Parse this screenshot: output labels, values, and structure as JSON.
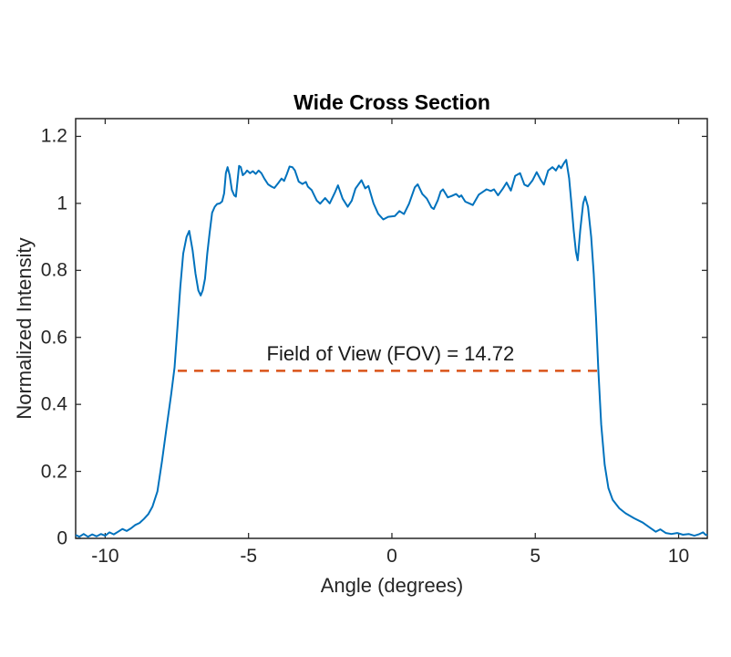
{
  "chart_data": {
    "type": "line",
    "title": "Wide Cross Section",
    "xlabel": "Angle (degrees)",
    "ylabel": "Normalized Intensity",
    "xlim": [
      -11.03,
      11.0
    ],
    "ylim": [
      0,
      1.253
    ],
    "xticks": {
      "values": [
        -10,
        -5,
        0,
        5,
        10
      ],
      "labels": [
        "-10",
        "-5",
        "0",
        "5",
        "10"
      ]
    },
    "yticks": {
      "values": [
        0,
        0.2,
        0.4,
        0.6,
        0.8,
        1,
        1.2
      ],
      "labels": [
        "0",
        "0.2",
        "0.4",
        "0.6",
        "0.8",
        "1",
        "1.2"
      ]
    },
    "grid": false,
    "box": true,
    "axis_color": "#262626",
    "background": "#ffffff",
    "series": [
      {
        "name": "intensity-curve",
        "color": "#0072BD",
        "line_style": "solid",
        "line_width": 2,
        "points": [
          [
            -11.03,
            0.01
          ],
          [
            -10.9,
            0.005
          ],
          [
            -10.75,
            0.013
          ],
          [
            -10.6,
            0.005
          ],
          [
            -10.45,
            0.012
          ],
          [
            -10.3,
            0.006
          ],
          [
            -10.15,
            0.013
          ],
          [
            -10.0,
            0.008
          ],
          [
            -9.85,
            0.018
          ],
          [
            -9.7,
            0.012
          ],
          [
            -9.55,
            0.02
          ],
          [
            -9.4,
            0.028
          ],
          [
            -9.25,
            0.022
          ],
          [
            -9.1,
            0.03
          ],
          [
            -8.95,
            0.04
          ],
          [
            -8.8,
            0.046
          ],
          [
            -8.65,
            0.058
          ],
          [
            -8.5,
            0.072
          ],
          [
            -8.35,
            0.095
          ],
          [
            -8.18,
            0.14
          ],
          [
            -8.02,
            0.23
          ],
          [
            -7.86,
            0.33
          ],
          [
            -7.7,
            0.43
          ],
          [
            -7.58,
            0.51
          ],
          [
            -7.48,
            0.63
          ],
          [
            -7.38,
            0.75
          ],
          [
            -7.28,
            0.85
          ],
          [
            -7.16,
            0.9
          ],
          [
            -7.07,
            0.918
          ],
          [
            -6.95,
            0.86
          ],
          [
            -6.85,
            0.79
          ],
          [
            -6.75,
            0.74
          ],
          [
            -6.67,
            0.725
          ],
          [
            -6.6,
            0.74
          ],
          [
            -6.52,
            0.775
          ],
          [
            -6.44,
            0.85
          ],
          [
            -6.36,
            0.91
          ],
          [
            -6.27,
            0.972
          ],
          [
            -6.18,
            0.99
          ],
          [
            -6.1,
            0.998
          ],
          [
            -6.0,
            1.0
          ],
          [
            -5.92,
            1.006
          ],
          [
            -5.85,
            1.03
          ],
          [
            -5.79,
            1.09
          ],
          [
            -5.73,
            1.108
          ],
          [
            -5.66,
            1.085
          ],
          [
            -5.58,
            1.04
          ],
          [
            -5.5,
            1.024
          ],
          [
            -5.44,
            1.02
          ],
          [
            -5.38,
            1.07
          ],
          [
            -5.33,
            1.112
          ],
          [
            -5.27,
            1.108
          ],
          [
            -5.2,
            1.084
          ],
          [
            -5.12,
            1.09
          ],
          [
            -5.05,
            1.098
          ],
          [
            -4.95,
            1.09
          ],
          [
            -4.85,
            1.096
          ],
          [
            -4.75,
            1.088
          ],
          [
            -4.65,
            1.098
          ],
          [
            -4.55,
            1.09
          ],
          [
            -4.45,
            1.074
          ],
          [
            -4.32,
            1.057
          ],
          [
            -4.2,
            1.05
          ],
          [
            -4.1,
            1.046
          ],
          [
            -3.97,
            1.06
          ],
          [
            -3.85,
            1.074
          ],
          [
            -3.76,
            1.067
          ],
          [
            -3.66,
            1.088
          ],
          [
            -3.57,
            1.11
          ],
          [
            -3.47,
            1.108
          ],
          [
            -3.38,
            1.098
          ],
          [
            -3.25,
            1.065
          ],
          [
            -3.12,
            1.058
          ],
          [
            -3.0,
            1.064
          ],
          [
            -2.93,
            1.05
          ],
          [
            -2.8,
            1.04
          ],
          [
            -2.62,
            1.008
          ],
          [
            -2.5,
            0.999
          ],
          [
            -2.33,
            1.016
          ],
          [
            -2.17,
            1.0
          ],
          [
            -1.98,
            1.034
          ],
          [
            -1.88,
            1.054
          ],
          [
            -1.72,
            1.014
          ],
          [
            -1.54,
            0.99
          ],
          [
            -1.4,
            1.008
          ],
          [
            -1.27,
            1.044
          ],
          [
            -1.06,
            1.069
          ],
          [
            -0.93,
            1.045
          ],
          [
            -0.82,
            1.052
          ],
          [
            -0.64,
            1.0
          ],
          [
            -0.48,
            0.969
          ],
          [
            -0.3,
            0.952
          ],
          [
            -0.13,
            0.96
          ],
          [
            0.1,
            0.962
          ],
          [
            0.26,
            0.977
          ],
          [
            0.42,
            0.968
          ],
          [
            0.6,
            0.999
          ],
          [
            0.8,
            1.048
          ],
          [
            0.9,
            1.057
          ],
          [
            1.06,
            1.028
          ],
          [
            1.22,
            1.014
          ],
          [
            1.38,
            0.988
          ],
          [
            1.46,
            0.983
          ],
          [
            1.6,
            1.009
          ],
          [
            1.7,
            1.035
          ],
          [
            1.78,
            1.042
          ],
          [
            1.95,
            1.018
          ],
          [
            2.08,
            1.022
          ],
          [
            2.24,
            1.028
          ],
          [
            2.35,
            1.019
          ],
          [
            2.42,
            1.024
          ],
          [
            2.56,
            1.005
          ],
          [
            2.72,
            0.999
          ],
          [
            2.82,
            0.995
          ],
          [
            3.03,
            1.026
          ],
          [
            3.2,
            1.036
          ],
          [
            3.3,
            1.042
          ],
          [
            3.45,
            1.037
          ],
          [
            3.56,
            1.042
          ],
          [
            3.7,
            1.024
          ],
          [
            3.87,
            1.044
          ],
          [
            4.0,
            1.062
          ],
          [
            4.15,
            1.038
          ],
          [
            4.3,
            1.082
          ],
          [
            4.47,
            1.09
          ],
          [
            4.62,
            1.056
          ],
          [
            4.74,
            1.051
          ],
          [
            4.9,
            1.068
          ],
          [
            5.05,
            1.093
          ],
          [
            5.2,
            1.069
          ],
          [
            5.3,
            1.056
          ],
          [
            5.45,
            1.098
          ],
          [
            5.6,
            1.108
          ],
          [
            5.72,
            1.098
          ],
          [
            5.82,
            1.113
          ],
          [
            5.9,
            1.105
          ],
          [
            6.0,
            1.12
          ],
          [
            6.08,
            1.13
          ],
          [
            6.18,
            1.075
          ],
          [
            6.26,
            1.0
          ],
          [
            6.34,
            0.92
          ],
          [
            6.42,
            0.855
          ],
          [
            6.48,
            0.83
          ],
          [
            6.57,
            0.92
          ],
          [
            6.67,
            1.0
          ],
          [
            6.74,
            1.02
          ],
          [
            6.84,
            0.99
          ],
          [
            6.95,
            0.9
          ],
          [
            7.04,
            0.79
          ],
          [
            7.12,
            0.66
          ],
          [
            7.2,
            0.5
          ],
          [
            7.3,
            0.34
          ],
          [
            7.42,
            0.22
          ],
          [
            7.55,
            0.15
          ],
          [
            7.7,
            0.115
          ],
          [
            7.93,
            0.09
          ],
          [
            8.15,
            0.075
          ],
          [
            8.45,
            0.06
          ],
          [
            8.75,
            0.047
          ],
          [
            9.0,
            0.032
          ],
          [
            9.2,
            0.02
          ],
          [
            9.36,
            0.027
          ],
          [
            9.55,
            0.016
          ],
          [
            9.75,
            0.013
          ],
          [
            9.95,
            0.016
          ],
          [
            10.15,
            0.011
          ],
          [
            10.35,
            0.013
          ],
          [
            10.55,
            0.008
          ],
          [
            10.7,
            0.012
          ],
          [
            10.85,
            0.018
          ],
          [
            10.95,
            0.01
          ],
          [
            11.0,
            0.012
          ]
        ]
      },
      {
        "name": "fov-line",
        "color": "#D95319",
        "line_style": "dashed",
        "line_width": 2.5,
        "points": [
          [
            -7.47,
            0.5
          ],
          [
            7.25,
            0.5
          ]
        ]
      }
    ],
    "annotation": {
      "text": "Field of View (FOV) = 14.72",
      "x": -0.05,
      "y": 0.5,
      "fov_value": 14.72
    }
  }
}
